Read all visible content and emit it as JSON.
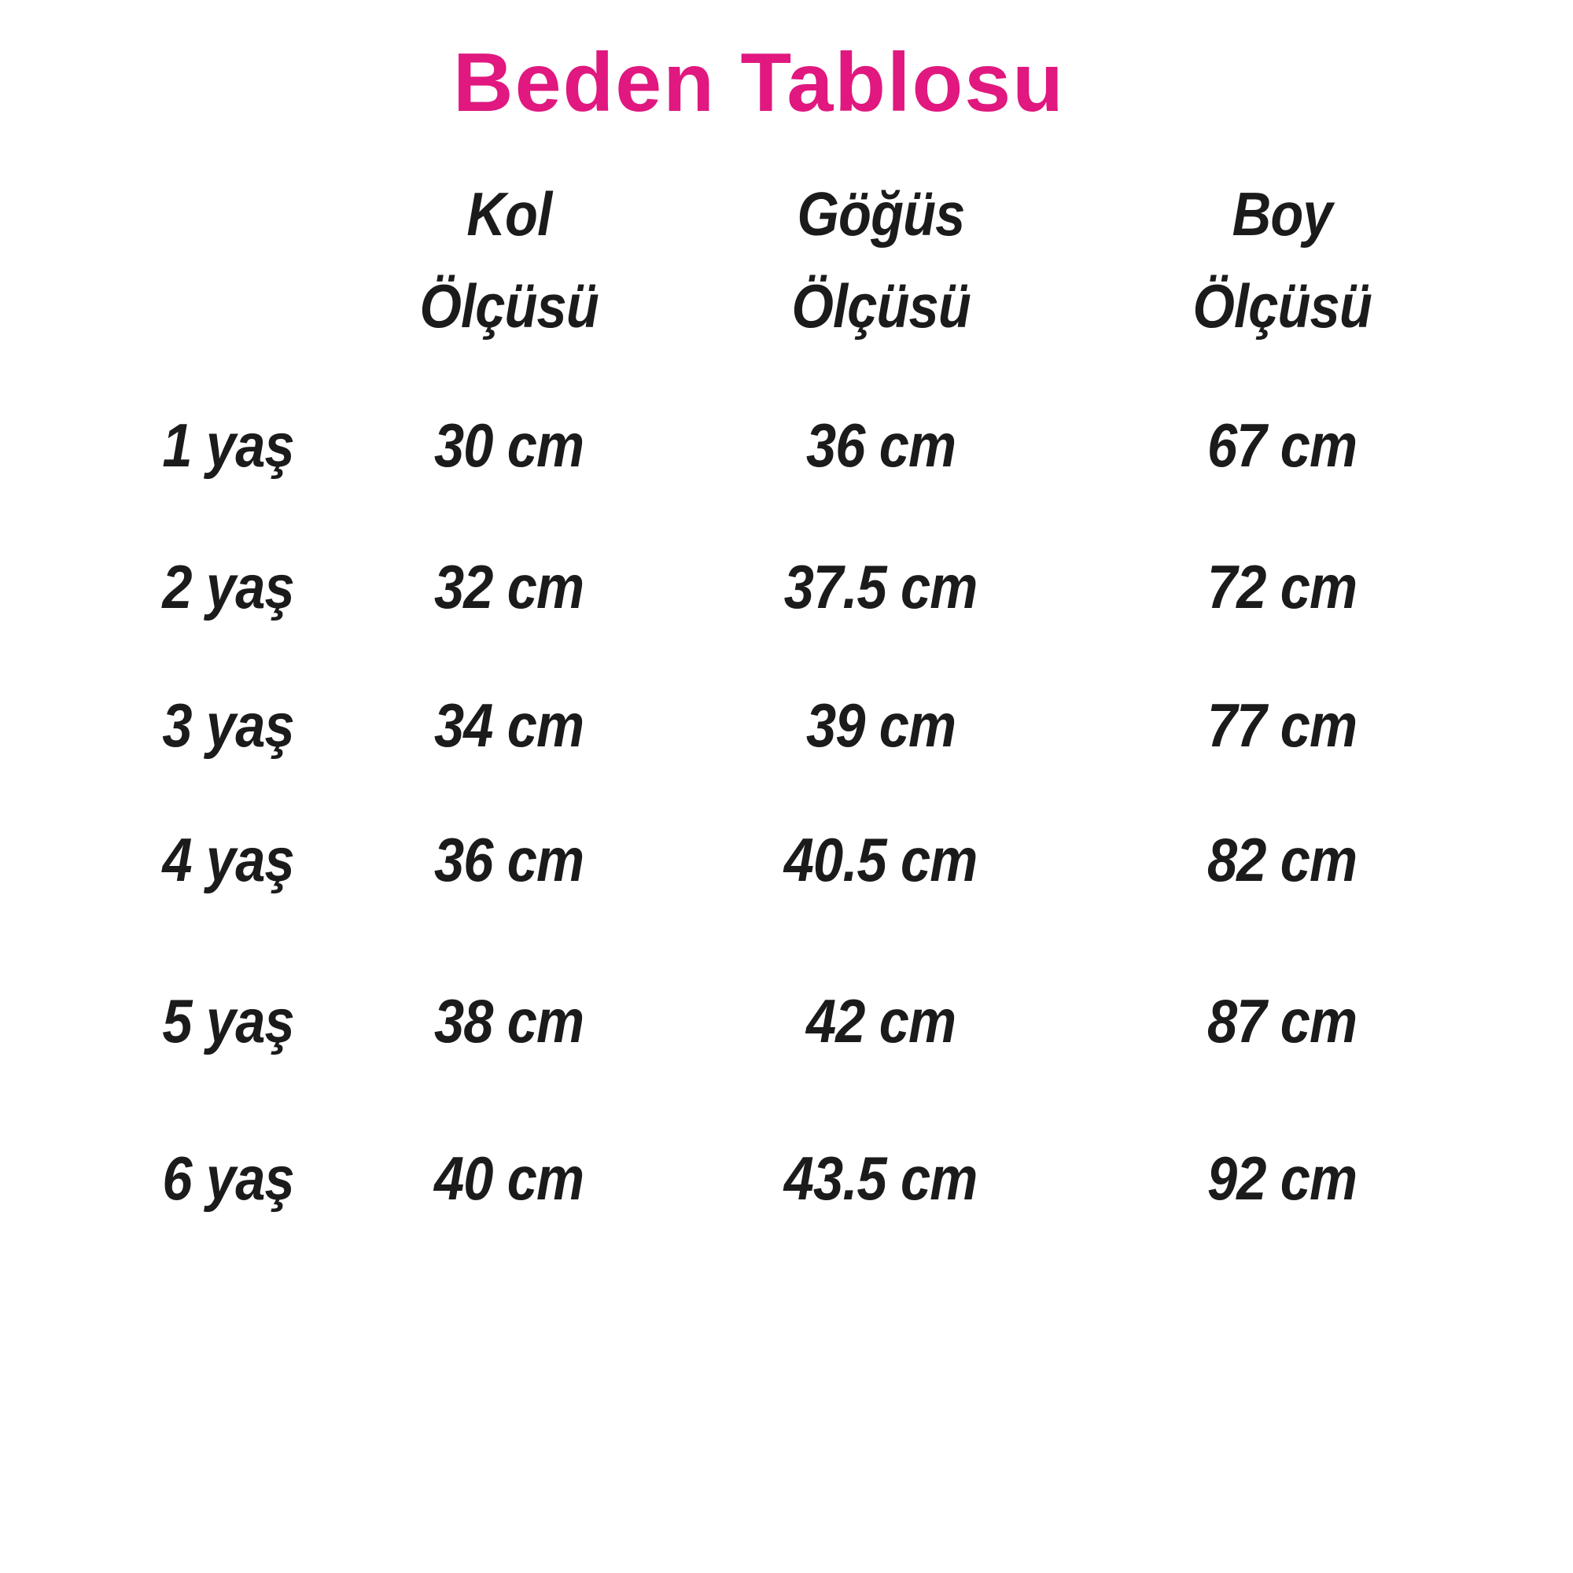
{
  "page": {
    "title": "Beden Tablosu"
  },
  "theme": {
    "title_color": "#E0187F",
    "text_color": "#1B1B1B",
    "background": "#FFFFFF"
  },
  "table": {
    "header": [
      {
        "line1": "Kol",
        "line2": "Ölçüsü"
      },
      {
        "line1": "Göğüs",
        "line2": "Ölçüsü"
      },
      {
        "line1": "Boy",
        "line2": "Ölçüsü"
      }
    ],
    "rows": [
      {
        "age": "1 yaş",
        "kol": "30 cm",
        "gogus": "36 cm",
        "boy": "67 cm"
      },
      {
        "age": "2 yaş",
        "kol": "32 cm",
        "gogus": "37.5 cm",
        "boy": "72 cm"
      },
      {
        "age": "3 yaş",
        "kol": "34 cm",
        "gogus": "39 cm",
        "boy": "77 cm"
      },
      {
        "age": "4 yaş",
        "kol": "36 cm",
        "gogus": "40.5 cm",
        "boy": "82 cm"
      },
      {
        "age": "5 yaş",
        "kol": "38 cm",
        "gogus": "42 cm",
        "boy": "87 cm"
      },
      {
        "age": "6 yaş",
        "kol": "40 cm",
        "gogus": "43.5 cm",
        "boy": "92 cm"
      }
    ]
  },
  "chart_data": {
    "type": "table",
    "title": "Beden Tablosu",
    "columns": [
      "",
      "Kol Ölçüsü",
      "Göğüs Ölçüsü",
      "Boy Ölçüsü"
    ],
    "rows": [
      [
        "1 yaş",
        "30 cm",
        "36 cm",
        "67 cm"
      ],
      [
        "2 yaş",
        "32 cm",
        "37.5 cm",
        "72 cm"
      ],
      [
        "3 yaş",
        "34 cm",
        "39 cm",
        "77 cm"
      ],
      [
        "4 yaş",
        "36 cm",
        "40.5 cm",
        "82 cm"
      ],
      [
        "5 yaş",
        "38 cm",
        "42 cm",
        "87 cm"
      ],
      [
        "6 yaş",
        "40 cm",
        "43.5 cm",
        "92 cm"
      ]
    ],
    "units": "cm",
    "layout": {
      "grid": false,
      "borders": false,
      "background": "#FFFFFF"
    }
  }
}
